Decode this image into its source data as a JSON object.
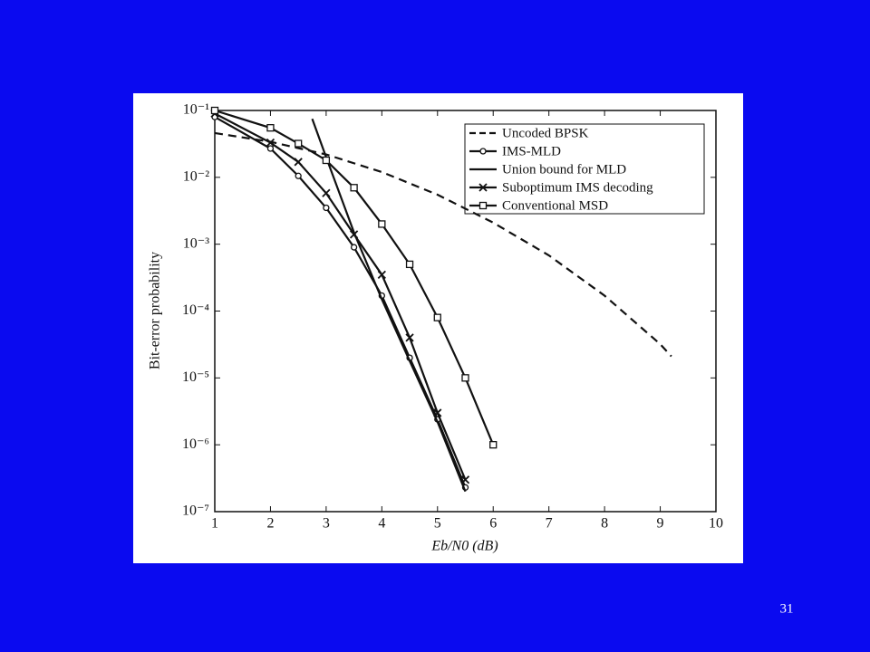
{
  "slide_number": "31",
  "chart_data": {
    "type": "line",
    "x_label": "Eb/N0 (dB)",
    "y_label": "Bit-error probability",
    "y_scale": "log",
    "xlim": [
      1,
      10
    ],
    "xticks": [
      1,
      2,
      3,
      4,
      5,
      6,
      7,
      8,
      9,
      10
    ],
    "ylim": [
      1e-07,
      0.1
    ],
    "yticks": [
      {
        "value": 0.1,
        "label": "10⁻¹"
      },
      {
        "value": 0.01,
        "label": "10⁻²"
      },
      {
        "value": 0.001,
        "label": "10⁻³"
      },
      {
        "value": 0.0001,
        "label": "10⁻⁴"
      },
      {
        "value": 1e-05,
        "label": "10⁻⁵"
      },
      {
        "value": 1e-06,
        "label": "10⁻⁶"
      },
      {
        "value": 1e-07,
        "label": "10⁻⁷"
      }
    ],
    "legend": "upper right",
    "series": [
      {
        "name": "Uncoded BPSK",
        "color": "#111111",
        "dash": "dashed",
        "marker": "none",
        "x": [
          1,
          2,
          3,
          4,
          5,
          6,
          7,
          8,
          9,
          9.2
        ],
        "values": [
          0.046,
          0.034,
          0.022,
          0.012,
          0.0055,
          0.0021,
          0.00068,
          0.00017,
          3.2e-05,
          2.1e-05
        ]
      },
      {
        "name": "IMS-MLD",
        "color": "#111111",
        "dash": "solid",
        "marker": "circle",
        "x": [
          1,
          2,
          2.5,
          3,
          3.5,
          4,
          4.5,
          5,
          5.5
        ],
        "values": [
          0.08,
          0.027,
          0.0105,
          0.0035,
          0.0009,
          0.00017,
          2e-05,
          2.4e-06,
          2.3e-07
        ]
      },
      {
        "name": "Union bound for MLD",
        "color": "#111111",
        "dash": "solid",
        "marker": "none",
        "x": [
          2.75,
          3,
          3.5,
          4,
          4.5,
          5,
          5.5
        ],
        "values": [
          0.075,
          0.02,
          0.0015,
          0.00015,
          1.8e-05,
          2.2e-06,
          2e-07
        ]
      },
      {
        "name": "Suboptimum IMS decoding",
        "color": "#111111",
        "dash": "solid",
        "marker": "x",
        "x": [
          1,
          2,
          2.5,
          3,
          3.5,
          4,
          4.5,
          5,
          5.5
        ],
        "values": [
          0.09,
          0.033,
          0.017,
          0.0058,
          0.0014,
          0.00035,
          4e-05,
          3e-06,
          3e-07
        ]
      },
      {
        "name": "Conventional MSD",
        "color": "#111111",
        "dash": "solid",
        "marker": "square",
        "x": [
          1,
          2,
          2.5,
          3,
          3.5,
          4,
          4.5,
          5,
          5.5,
          6
        ],
        "values": [
          0.1,
          0.055,
          0.032,
          0.018,
          0.007,
          0.002,
          0.0005,
          8e-05,
          1e-05,
          1e-06
        ]
      }
    ]
  }
}
